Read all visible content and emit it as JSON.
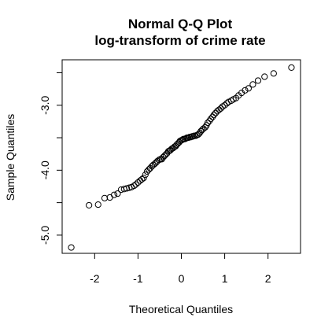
{
  "chart_data": {
    "type": "scatter",
    "title": "Normal Q-Q Plot",
    "subtitle": "log-transform of crime rate",
    "xlabel": "Theoretical Quantiles",
    "ylabel": "Sample Quantiles",
    "xlim": [
      -2.75,
      2.75
    ],
    "ylim": [
      -5.28,
      -2.3
    ],
    "grid": false,
    "legend": "none",
    "x_ticks": [
      {
        "value": -2,
        "label": "-2"
      },
      {
        "value": -1,
        "label": "-1"
      },
      {
        "value": 0,
        "label": "0"
      },
      {
        "value": 1,
        "label": "1"
      },
      {
        "value": 2,
        "label": "2"
      }
    ],
    "y_ticks": [
      {
        "value": -5.0,
        "label": "-5.0"
      },
      {
        "value": -4.5,
        "label": ""
      },
      {
        "value": -4.0,
        "label": "-4.0"
      },
      {
        "value": -3.5,
        "label": ""
      },
      {
        "value": -3.0,
        "label": "-3.0"
      },
      {
        "value": -2.5,
        "label": ""
      }
    ],
    "points": [
      [
        -2.54,
        -5.19
      ],
      [
        -2.13,
        -4.54
      ],
      [
        -1.92,
        -4.53
      ],
      [
        -1.77,
        -4.43
      ],
      [
        -1.65,
        -4.42
      ],
      [
        -1.55,
        -4.38
      ],
      [
        -1.47,
        -4.36
      ],
      [
        -1.39,
        -4.3
      ],
      [
        -1.32,
        -4.29
      ],
      [
        -1.26,
        -4.28
      ],
      [
        -1.2,
        -4.27
      ],
      [
        -1.15,
        -4.26
      ],
      [
        -1.09,
        -4.24
      ],
      [
        -1.05,
        -4.22
      ],
      [
        -1.0,
        -4.19
      ],
      [
        -0.95,
        -4.16
      ],
      [
        -0.91,
        -4.14
      ],
      [
        -0.87,
        -4.12
      ],
      [
        -0.83,
        -4.07
      ],
      [
        -0.79,
        -4.02
      ],
      [
        -0.75,
        -3.99
      ],
      [
        -0.72,
        -3.97
      ],
      [
        -0.68,
        -3.94
      ],
      [
        -0.65,
        -3.92
      ],
      [
        -0.61,
        -3.9
      ],
      [
        -0.58,
        -3.88
      ],
      [
        -0.55,
        -3.86
      ],
      [
        -0.51,
        -3.84
      ],
      [
        -0.48,
        -3.83
      ],
      [
        -0.45,
        -3.83
      ],
      [
        -0.42,
        -3.8
      ],
      [
        -0.39,
        -3.78
      ],
      [
        -0.36,
        -3.76
      ],
      [
        -0.33,
        -3.74
      ],
      [
        -0.3,
        -3.71
      ],
      [
        -0.27,
        -3.7
      ],
      [
        -0.25,
        -3.69
      ],
      [
        -0.22,
        -3.67
      ],
      [
        -0.19,
        -3.66
      ],
      [
        -0.16,
        -3.64
      ],
      [
        -0.13,
        -3.63
      ],
      [
        -0.11,
        -3.61
      ],
      [
        -0.08,
        -3.59
      ],
      [
        -0.05,
        -3.57
      ],
      [
        -0.03,
        -3.55
      ],
      [
        0.0,
        -3.54
      ],
      [
        0.03,
        -3.53
      ],
      [
        0.05,
        -3.52
      ],
      [
        0.08,
        -3.52
      ],
      [
        0.11,
        -3.51
      ],
      [
        0.13,
        -3.5
      ],
      [
        0.16,
        -3.5
      ],
      [
        0.19,
        -3.49
      ],
      [
        0.22,
        -3.49
      ],
      [
        0.25,
        -3.48
      ],
      [
        0.27,
        -3.48
      ],
      [
        0.3,
        -3.47
      ],
      [
        0.33,
        -3.47
      ],
      [
        0.36,
        -3.46
      ],
      [
        0.39,
        -3.45
      ],
      [
        0.42,
        -3.43
      ],
      [
        0.45,
        -3.4
      ],
      [
        0.48,
        -3.38
      ],
      [
        0.51,
        -3.36
      ],
      [
        0.55,
        -3.34
      ],
      [
        0.58,
        -3.31
      ],
      [
        0.61,
        -3.27
      ],
      [
        0.65,
        -3.24
      ],
      [
        0.68,
        -3.21
      ],
      [
        0.72,
        -3.18
      ],
      [
        0.75,
        -3.15
      ],
      [
        0.79,
        -3.12
      ],
      [
        0.83,
        -3.09
      ],
      [
        0.87,
        -3.07
      ],
      [
        0.91,
        -3.05
      ],
      [
        0.95,
        -3.02
      ],
      [
        1.0,
        -3.0
      ],
      [
        1.05,
        -2.97
      ],
      [
        1.09,
        -2.95
      ],
      [
        1.15,
        -2.93
      ],
      [
        1.2,
        -2.91
      ],
      [
        1.26,
        -2.89
      ],
      [
        1.32,
        -2.85
      ],
      [
        1.39,
        -2.81
      ],
      [
        1.47,
        -2.77
      ],
      [
        1.55,
        -2.74
      ],
      [
        1.65,
        -2.68
      ],
      [
        1.77,
        -2.62
      ],
      [
        1.92,
        -2.56
      ],
      [
        2.13,
        -2.51
      ],
      [
        2.54,
        -2.42
      ]
    ]
  }
}
